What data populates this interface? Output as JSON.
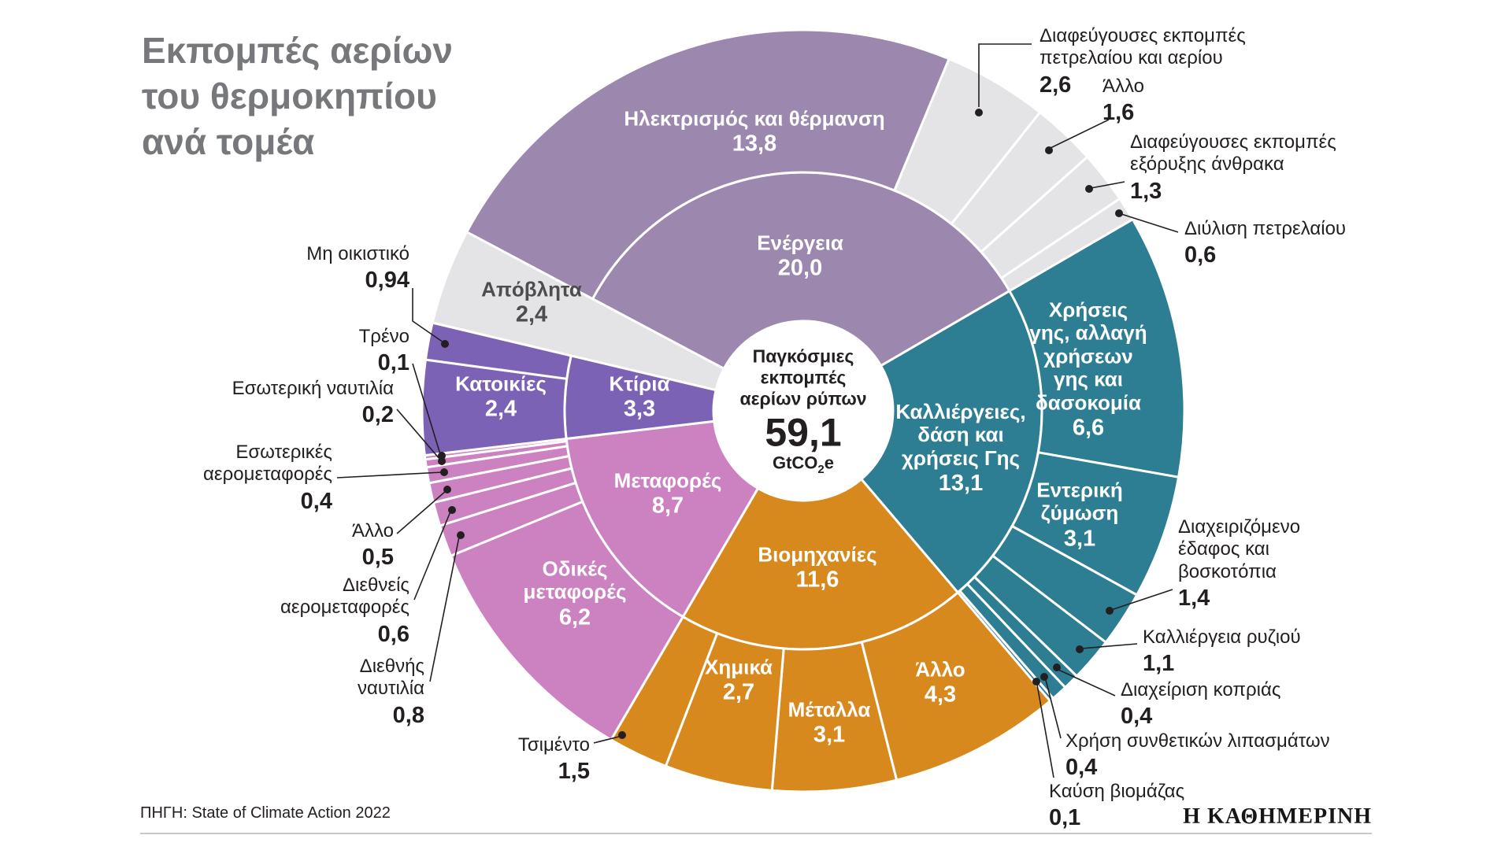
{
  "title": "Εκπομπές αερίων\nτου θερμοκηπίου\nανά τομέα",
  "center": {
    "label": "Παγκόσμιες\nεκπομπές\nαερίων ρύπων",
    "value": "59,1",
    "unit_prefix": "GtCO",
    "unit_sub": "2",
    "unit_suffix": "e"
  },
  "source": "ΠΗΓΗ: State of Climate Action 2022",
  "brand": "Η ΚΑΘΗΜΕΡΙΝΗ",
  "chart_data": {
    "type": "sunburst",
    "title": "Εκπομπές αερίων του θερμοκηπίου ανά τομέα",
    "total_value": 59.1,
    "total_display": "59,1",
    "units": "GtCO2e",
    "start_angle_deg": -62,
    "colors": {
      "energy": "#9C87AF",
      "agriculture": "#2E7E93",
      "industry": "#D8891D",
      "transport": "#CC82C1",
      "buildings": "#7C62B5",
      "gray": "#E4E3E5"
    },
    "sectors": [
      {
        "name": "Ενέργεια",
        "value": 20.0,
        "display": "20,0",
        "color": "#9C87AF",
        "children": [
          {
            "name": "Ηλεκτρισμός και θέρμανση",
            "value": 13.8,
            "display": "13,8",
            "color": "#9C87AF"
          },
          {
            "name": "Διαφεύγουσες εκπομπές πετρελαίου και αερίου",
            "value": 2.6,
            "display": "2,6",
            "color": "#E4E3E5"
          },
          {
            "name": "Άλλο",
            "value": 1.6,
            "display": "1,6",
            "color": "#E4E3E5"
          },
          {
            "name": "Διαφεύγουσες εκπομπές εξόρυξης άνθρακα",
            "value": 1.3,
            "display": "1,3",
            "color": "#E4E3E5"
          },
          {
            "name": "Διύλιση πετρελαίου",
            "value": 0.6,
            "display": "0,6",
            "color": "#E4E3E5"
          }
        ]
      },
      {
        "name": "Καλλιέργειες, δάση και χρήσεις Γης",
        "value": 13.1,
        "display": "13,1",
        "color": "#2E7E93",
        "children": [
          {
            "name": "Χρήσεις γης, αλλαγή χρήσεων γης και δασοκομία",
            "value": 6.6,
            "display": "6,6",
            "color": "#2E7E93"
          },
          {
            "name": "Εντερική ζύμωση",
            "value": 3.1,
            "display": "3,1",
            "color": "#2E7E93"
          },
          {
            "name": "Διαχειριζόμενο έδαφος και βοσκοτόπια",
            "value": 1.4,
            "display": "1,4",
            "color": "#2E7E93"
          },
          {
            "name": "Καλλιέργεια ρυζιού",
            "value": 1.1,
            "display": "1,1",
            "color": "#2E7E93"
          },
          {
            "name": "Διαχείριση κοπριάς",
            "value": 0.4,
            "display": "0,4",
            "color": "#2E7E93"
          },
          {
            "name": "Χρήση συνθετικών λιπασμάτων",
            "value": 0.4,
            "display": "0,4",
            "color": "#2E7E93"
          },
          {
            "name": "Καύση βιομάζας",
            "value": 0.1,
            "display": "0,1",
            "color": "#2E7E93"
          }
        ]
      },
      {
        "name": "Βιομηχανίες",
        "value": 11.6,
        "display": "11,6",
        "color": "#D8891D",
        "children": [
          {
            "name": "Άλλο",
            "value": 4.3,
            "display": "4,3",
            "color": "#D8891D"
          },
          {
            "name": "Μέταλλα",
            "value": 3.1,
            "display": "3,1",
            "color": "#D8891D"
          },
          {
            "name": "Χημικά",
            "value": 2.7,
            "display": "2,7",
            "color": "#D8891D"
          },
          {
            "name": "Τσιμέντο",
            "value": 1.5,
            "display": "1,5",
            "color": "#D8891D"
          }
        ]
      },
      {
        "name": "Μεταφορές",
        "value": 8.7,
        "display": "8,7",
        "color": "#CC82C1",
        "children": [
          {
            "name": "Οδικές μεταφορές",
            "value": 6.2,
            "display": "6,2",
            "color": "#CC82C1"
          },
          {
            "name": "Διεθνής ναυτιλία",
            "value": 0.8,
            "display": "0,8",
            "color": "#CC82C1"
          },
          {
            "name": "Διεθνείς αερομεταφορές",
            "value": 0.6,
            "display": "0,6",
            "color": "#CC82C1"
          },
          {
            "name": "Άλλο",
            "value": 0.5,
            "display": "0,5",
            "color": "#CC82C1"
          },
          {
            "name": "Εσωτερικές αερομεταφορές",
            "value": 0.4,
            "display": "0,4",
            "color": "#CC82C1"
          },
          {
            "name": "Εσωτερική ναυτιλία",
            "value": 0.2,
            "display": "0,2",
            "color": "#CC82C1"
          },
          {
            "name": "Τρένο",
            "value": 0.1,
            "display": "0,1",
            "color": "#CC82C1"
          }
        ]
      },
      {
        "name": "Κτίρια",
        "value": 3.3,
        "display": "3,3",
        "color": "#7C62B5",
        "children": [
          {
            "name": "Κατοικίες",
            "value": 2.4,
            "display": "2,4",
            "color": "#7C62B5"
          },
          {
            "name": "Μη οικιστικό",
            "value": 0.94,
            "display": "0,94",
            "color": "#7C62B5"
          }
        ]
      },
      {
        "name": "Απόβλητα",
        "value": 2.4,
        "display": "2,4",
        "color": "#E4E3E5",
        "children": []
      }
    ]
  }
}
